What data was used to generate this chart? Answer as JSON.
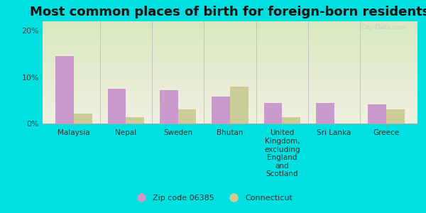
{
  "title": "Most common places of birth for foreign-born residents",
  "categories": [
    "Malaysia",
    "Nepal",
    "Sweden",
    "Bhutan",
    "United\nKingdom,\nexcluding\nEngland\nand\nScotland",
    "Sri Lanka",
    "Greece"
  ],
  "zip_values": [
    0.145,
    0.075,
    0.072,
    0.058,
    0.045,
    0.044,
    0.042
  ],
  "ct_values": [
    0.022,
    0.013,
    0.03,
    0.08,
    0.013,
    0.0,
    0.03
  ],
  "zip_color": "#cc99cc",
  "ct_color": "#cccc99",
  "background_outer": "#00e0e0",
  "background_inner_top": "#d8e8c0",
  "background_inner_bottom": "#f0f0e0",
  "ylim": [
    0,
    0.22
  ],
  "yticks": [
    0.0,
    0.1,
    0.2
  ],
  "ytick_labels": [
    "0%",
    "10%",
    "20%"
  ],
  "legend_zip": "Zip code 06385",
  "legend_ct": "Connecticut",
  "bar_width": 0.35,
  "title_fontsize": 13,
  "watermark": "City-Data.com"
}
